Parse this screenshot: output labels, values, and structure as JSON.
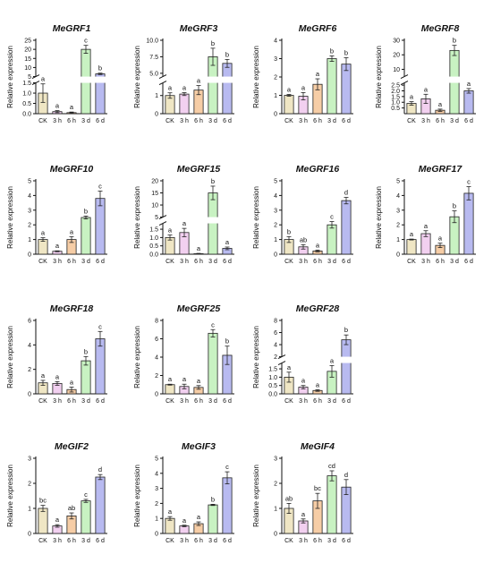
{
  "colors": [
    "#efe6c4",
    "#f2d0f0",
    "#f6cda6",
    "#c8f2c2",
    "#b8baf0"
  ],
  "chart_data": [
    {
      "type": "bar",
      "title": "MeGRF1",
      "ylabel": "Relative expression",
      "categories": [
        "CK",
        "3 h",
        "6 h",
        "3 d",
        "6 d"
      ],
      "values": [
        1.0,
        0.1,
        0.05,
        20,
        6.5
      ],
      "errors": [
        0.45,
        0.05,
        0.03,
        2.2,
        0.4
      ],
      "letters": [
        "a",
        "a",
        "a",
        "c",
        "b"
      ],
      "ticks": [
        [
          "0.0",
          0
        ],
        [
          "0.5",
          0.5
        ],
        [
          "1.0",
          1
        ],
        [
          "1.5",
          1.5
        ],
        [
          "5",
          5
        ],
        [
          "10",
          10
        ],
        [
          "15",
          15
        ],
        [
          "20",
          20
        ],
        [
          "25",
          25
        ]
      ],
      "break": {
        "low": [
          0,
          1.5
        ],
        "high": [
          5,
          25
        ]
      }
    },
    {
      "type": "bar",
      "title": "MeGRF3",
      "ylabel": "Relative expression",
      "categories": [
        "CK",
        "3 h",
        "6 h",
        "3 d",
        "6 d"
      ],
      "values": [
        1.0,
        1.08,
        1.3,
        7.5,
        6.5
      ],
      "errors": [
        0.15,
        0.08,
        0.25,
        1.3,
        0.6
      ],
      "letters": [
        "a",
        "a",
        "a",
        "b",
        "b"
      ],
      "ticks": [
        [
          "0",
          0
        ],
        [
          "1",
          1
        ],
        [
          "5.0",
          5
        ],
        [
          "7.5",
          7.5
        ],
        [
          "10.0",
          10
        ]
      ],
      "break": {
        "low": [
          0,
          1.7
        ],
        "high": [
          4.5,
          10
        ]
      }
    },
    {
      "type": "bar",
      "title": "MeGRF6",
      "ylabel": "Relative expression",
      "categories": [
        "CK",
        "3 h",
        "6 h",
        "3 d",
        "6 d"
      ],
      "values": [
        1.0,
        0.95,
        1.6,
        3.0,
        2.7
      ],
      "errors": [
        0.05,
        0.2,
        0.3,
        0.15,
        0.35
      ],
      "letters": [
        "a",
        "a",
        "a",
        "b",
        "b"
      ],
      "ticks": [
        [
          "0",
          0
        ],
        [
          "1",
          1
        ],
        [
          "2",
          2
        ],
        [
          "3",
          3
        ],
        [
          "4",
          4
        ]
      ],
      "ylim": [
        0,
        4
      ]
    },
    {
      "type": "bar",
      "title": "MeGRF8",
      "ylabel": "Relative expression",
      "categories": [
        "CK",
        "3 h",
        "6 h",
        "3 d",
        "6 d"
      ],
      "values": [
        0.9,
        1.3,
        0.3,
        23,
        2.0
      ],
      "errors": [
        0.15,
        0.4,
        0.1,
        3.5,
        0.2
      ],
      "letters": [
        "a",
        "a",
        "a",
        "b",
        "a"
      ],
      "ticks": [
        [
          "0.5",
          0.5
        ],
        [
          "1.0",
          1
        ],
        [
          "1.5",
          1.5
        ],
        [
          "2.0",
          2
        ],
        [
          "2.5",
          2.5
        ],
        [
          "10",
          10
        ],
        [
          "20",
          20
        ],
        [
          "30",
          30
        ]
      ],
      "break": {
        "low": [
          0,
          2.7
        ],
        "high": [
          5,
          30
        ]
      }
    },
    {
      "type": "bar",
      "title": "MeGRF10",
      "ylabel": "Relative expression",
      "categories": [
        "CK",
        "3 h",
        "6 h",
        "3 d",
        "6 d"
      ],
      "values": [
        1.0,
        0.2,
        1.0,
        2.5,
        3.8
      ],
      "errors": [
        0.12,
        0.03,
        0.2,
        0.1,
        0.5
      ],
      "letters": [
        "a",
        "a",
        "a",
        "b",
        "c"
      ],
      "ticks": [
        [
          "0",
          0
        ],
        [
          "1",
          1
        ],
        [
          "2",
          2
        ],
        [
          "3",
          3
        ],
        [
          "4",
          4
        ],
        [
          "5",
          5
        ]
      ],
      "ylim": [
        0,
        5
      ]
    },
    {
      "type": "bar",
      "title": "MeGRF15",
      "ylabel": "Relative expression",
      "categories": [
        "CK",
        "3 h",
        "6 h",
        "3 d",
        "6 d"
      ],
      "values": [
        1.0,
        1.3,
        0.03,
        15,
        0.35
      ],
      "errors": [
        0.15,
        0.25,
        0.02,
        2.8,
        0.08
      ],
      "letters": [
        "a",
        "a",
        "a",
        "b",
        "a"
      ],
      "ticks": [
        [
          "0.0",
          0
        ],
        [
          "0.5",
          0.5
        ],
        [
          "1.0",
          1
        ],
        [
          "1.5",
          1.5
        ],
        [
          "5",
          5
        ],
        [
          "10",
          10
        ],
        [
          "15",
          15
        ],
        [
          "20",
          20
        ]
      ],
      "break": {
        "low": [
          0,
          1.85
        ],
        "high": [
          5,
          20
        ]
      }
    },
    {
      "type": "bar",
      "title": "MeGRF16",
      "ylabel": "Relative expression",
      "categories": [
        "CK",
        "3 h",
        "6 h",
        "3 d",
        "6 d"
      ],
      "values": [
        1.0,
        0.5,
        0.22,
        2.0,
        3.65
      ],
      "errors": [
        0.2,
        0.15,
        0.06,
        0.22,
        0.22
      ],
      "letters": [
        "b",
        "ab",
        "a",
        "c",
        "d"
      ],
      "ticks": [
        [
          "0",
          0
        ],
        [
          "1",
          1
        ],
        [
          "2",
          2
        ],
        [
          "3",
          3
        ],
        [
          "4",
          4
        ],
        [
          "5",
          5
        ]
      ],
      "ylim": [
        0,
        5
      ]
    },
    {
      "type": "bar",
      "title": "MeGRF17",
      "ylabel": "Relative expression",
      "categories": [
        "CK",
        "3 h",
        "6 h",
        "3 d",
        "6 d"
      ],
      "values": [
        1.0,
        1.4,
        0.6,
        2.55,
        4.15
      ],
      "errors": [
        0.03,
        0.2,
        0.15,
        0.4,
        0.45
      ],
      "letters": [
        "a",
        "a",
        "a",
        "b",
        "c"
      ],
      "ticks": [
        [
          "0",
          0
        ],
        [
          "1",
          1
        ],
        [
          "2",
          2
        ],
        [
          "3",
          3
        ],
        [
          "4",
          4
        ],
        [
          "5",
          5
        ]
      ],
      "ylim": [
        0,
        5
      ]
    },
    {
      "type": "bar",
      "title": "MeGRF18",
      "ylabel": "Relative expression",
      "categories": [
        "CK",
        "3 h",
        "6 h",
        "3 d",
        "6 d"
      ],
      "values": [
        0.9,
        0.85,
        0.35,
        2.7,
        4.5
      ],
      "errors": [
        0.2,
        0.15,
        0.2,
        0.35,
        0.6
      ],
      "letters": [
        "a",
        "a",
        "a",
        "b",
        "c"
      ],
      "ticks": [
        [
          "0",
          0
        ],
        [
          "2",
          2
        ],
        [
          "4",
          4
        ],
        [
          "6",
          6
        ]
      ],
      "ylim": [
        0,
        6
      ]
    },
    {
      "type": "bar",
      "title": "MeGRF25",
      "ylabel": "Relative expression",
      "categories": [
        "CK",
        "3 h",
        "6 h",
        "3 d",
        "6 d"
      ],
      "values": [
        1.0,
        0.8,
        0.7,
        6.6,
        4.2
      ],
      "errors": [
        0.05,
        0.25,
        0.2,
        0.4,
        1.0
      ],
      "letters": [
        "a",
        "a",
        "a",
        "c",
        "b"
      ],
      "ticks": [
        [
          "0",
          0
        ],
        [
          "2",
          2
        ],
        [
          "4",
          4
        ],
        [
          "6",
          6
        ],
        [
          "8",
          8
        ]
      ],
      "ylim": [
        0,
        8
      ]
    },
    {
      "type": "bar",
      "title": "MeGRF28",
      "ylabel": "Relative expression",
      "categories": [
        "CK",
        "3 h",
        "6 h",
        "3 d",
        "6 d"
      ],
      "values": [
        1.0,
        0.4,
        0.2,
        1.35,
        4.8
      ],
      "errors": [
        0.3,
        0.1,
        0.05,
        0.35,
        0.8
      ],
      "letters": [
        "a",
        "a",
        "a",
        "a",
        "b"
      ],
      "ticks": [
        [
          "0.0",
          0
        ],
        [
          "0.5",
          0.5
        ],
        [
          "1.0",
          1
        ],
        [
          "1.5",
          1.5
        ],
        [
          "2",
          2
        ],
        [
          "4",
          4
        ],
        [
          "6",
          6
        ],
        [
          "8",
          8
        ]
      ],
      "break": {
        "low": [
          0,
          1.85
        ],
        "high": [
          2,
          8
        ]
      }
    },
    {
      "type": "bar",
      "title": "MeGIF2",
      "ylabel": "Relative expression",
      "categories": [
        "CK",
        "3 h",
        "6 h",
        "3 d",
        "6 d"
      ],
      "values": [
        1.0,
        0.3,
        0.7,
        1.3,
        2.25
      ],
      "errors": [
        0.12,
        0.05,
        0.12,
        0.06,
        0.1
      ],
      "letters": [
        "bc",
        "a",
        "ab",
        "c",
        "d"
      ],
      "ticks": [
        [
          "0",
          0
        ],
        [
          "1",
          1
        ],
        [
          "2",
          2
        ],
        [
          "3",
          3
        ]
      ],
      "ylim": [
        0,
        3
      ]
    },
    {
      "type": "bar",
      "title": "MeGIF3",
      "ylabel": "Relative expression",
      "categories": [
        "CK",
        "3 h",
        "6 h",
        "3 d",
        "6 d"
      ],
      "values": [
        1.0,
        0.5,
        0.65,
        1.9,
        3.7
      ],
      "errors": [
        0.12,
        0.05,
        0.12,
        0.04,
        0.4
      ],
      "letters": [
        "a",
        "a",
        "a",
        "b",
        "c"
      ],
      "ticks": [
        [
          "0",
          0
        ],
        [
          "1",
          1
        ],
        [
          "2",
          2
        ],
        [
          "3",
          3
        ],
        [
          "4",
          4
        ],
        [
          "5",
          5
        ]
      ],
      "ylim": [
        0,
        5
      ]
    },
    {
      "type": "bar",
      "title": "MeGIF4",
      "ylabel": "Relative expression",
      "categories": [
        "CK",
        "3 h",
        "6 h",
        "3 d",
        "6 d"
      ],
      "values": [
        1.0,
        0.5,
        1.3,
        2.3,
        1.85
      ],
      "errors": [
        0.2,
        0.08,
        0.3,
        0.2,
        0.3
      ],
      "letters": [
        "ab",
        "a",
        "bc",
        "cd",
        "d"
      ],
      "ticks": [
        [
          "0",
          0
        ],
        [
          "1",
          1
        ],
        [
          "2",
          2
        ],
        [
          "3",
          3
        ]
      ],
      "ylim": [
        0,
        3
      ]
    }
  ]
}
